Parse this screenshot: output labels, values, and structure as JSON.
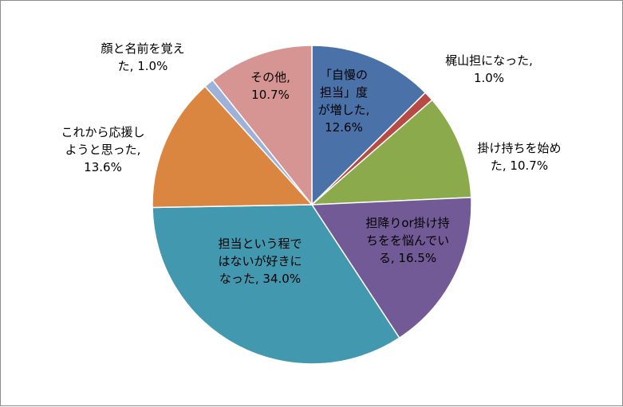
{
  "chart_data": {
    "type": "pie",
    "title": "",
    "slices": [
      {
        "label_lines": [
          "「自慢の",
          "担当」度",
          "が増した,",
          "12.6%"
        ],
        "value": 12.6,
        "color": "#4A71A8"
      },
      {
        "label_lines": [
          "梶山担になった,",
          "1.0%"
        ],
        "value": 1.0,
        "color": "#B84A46"
      },
      {
        "label_lines": [
          "掛け持ちを始め",
          "た, 10.7%"
        ],
        "value": 10.7,
        "color": "#8BAA4C"
      },
      {
        "label_lines": [
          "担降りor掛け持",
          "ちをを悩んでい",
          "る, 16.5%"
        ],
        "value": 16.5,
        "color": "#715A95"
      },
      {
        "label_lines": [
          "担当という程で",
          "はないが好きに",
          "なった, 34.0%"
        ],
        "value": 34.0,
        "color": "#4298AF"
      },
      {
        "label_lines": [
          "これから応援し",
          "ようと思った,",
          "13.6%"
        ],
        "value": 13.6,
        "color": "#DB8640"
      },
      {
        "label_lines": [
          "顔と名前を覚え",
          "た, 1.0%"
        ],
        "value": 1.0,
        "color": "#9EB1D8"
      },
      {
        "label_lines": [
          "その他,",
          "10.7%"
        ],
        "value": 10.7,
        "color": "#D69593"
      }
    ],
    "start_angle_deg": 0,
    "direction": "clockwise",
    "legend": "none"
  }
}
